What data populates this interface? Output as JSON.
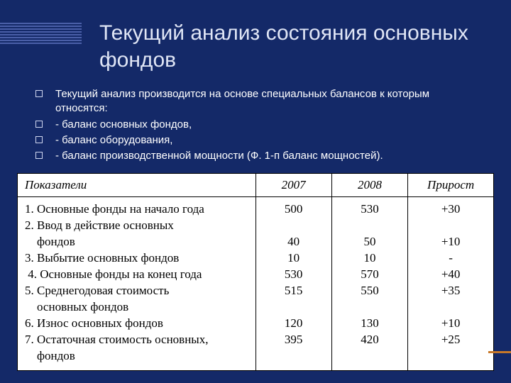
{
  "title": "Текущий анализ состояния основных фондов",
  "bullets": [
    "Текущий анализ производится на основе специальных балансов к которым относятся:",
    "- баланс основных фондов,",
    "- баланс оборудования,",
    "- баланс производственной мощности  (Ф. 1-п баланс мощностей)."
  ],
  "table": {
    "columns": [
      "Показатели",
      "2007",
      "2008",
      "Прирост"
    ],
    "column_widths": [
      "50%",
      "16%",
      "16%",
      "18%"
    ],
    "indicator_lines": [
      "1. Основные фонды на начало года",
      "2. Ввод в действие основных",
      "    фондов",
      "3. Выбытие основных фондов",
      " 4. Основные фонды на конец года",
      "5. Среднегодовая стоимость",
      "    основных фондов",
      "6. Износ основных фондов",
      "7. Остаточная стоимость основных,",
      "    фондов"
    ],
    "col_2007": [
      "500",
      "",
      "40",
      "10",
      "530",
      "515",
      "",
      "120",
      "395",
      ""
    ],
    "col_2008": [
      "530",
      "",
      "50",
      "10",
      "570",
      "550",
      "",
      "130",
      "420",
      ""
    ],
    "col_growth": [
      "+30",
      "",
      "+10",
      "-",
      "+40",
      "+35",
      "",
      "+10",
      "+25",
      ""
    ]
  },
  "colors": {
    "background": "#142968",
    "title_text": "#dfe5f5",
    "stripe": "#4a5fa8",
    "bullet_border": "#cfd6ef",
    "table_bg": "#ffffff",
    "table_border": "#000000",
    "accent": "#c87828"
  }
}
